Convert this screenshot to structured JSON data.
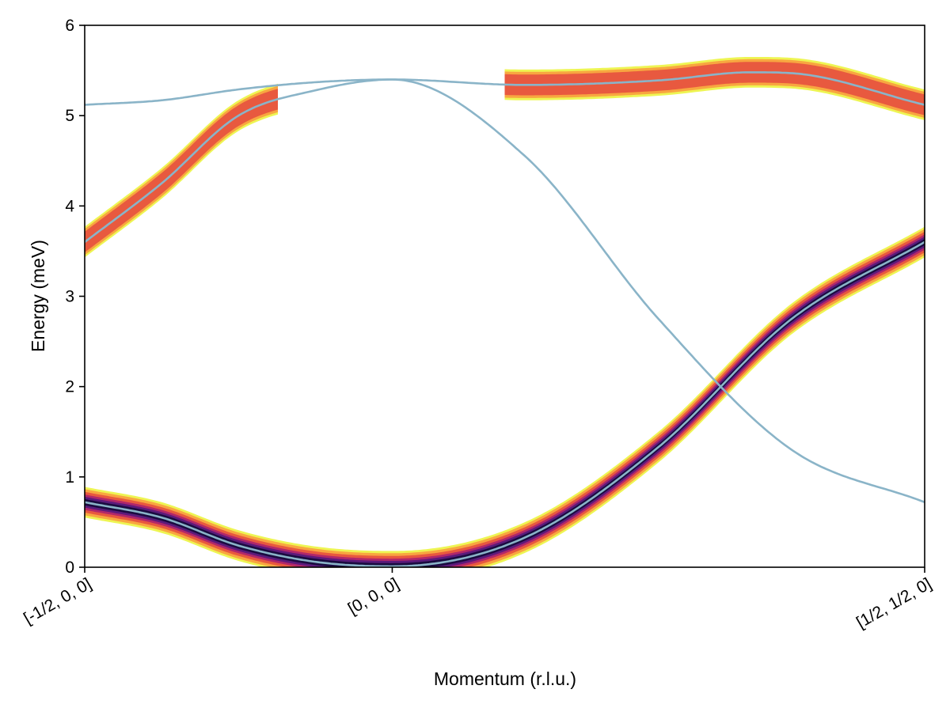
{
  "chart_data": {
    "type": "line",
    "xlabel": "Momentum (r.l.u.)",
    "ylabel": "Energy (meV)",
    "ylim": [
      0,
      6
    ],
    "xlim": [
      0,
      2.4142
    ],
    "grid": false,
    "y_ticks": [
      0,
      1,
      2,
      3,
      4,
      5,
      6
    ],
    "x_ticks": [
      {
        "value": 0,
        "label": "[-1/2, 0, 0]"
      },
      {
        "value": 0.8839,
        "label": "[0, 0, 0]"
      },
      {
        "value": 2.4142,
        "label": "[1/2, 1/2, 0]"
      }
    ],
    "intensity_colormap": [
      "#eef553",
      "#f8a640",
      "#e8593f",
      "#b1276a",
      "#5c1a7b",
      "#1a0c40"
    ],
    "series": [
      {
        "color": "#8ab4c8",
        "x": [
          0,
          0.221,
          0.442,
          0.663,
          0.884,
          1.266,
          1.649,
          2.032,
          2.414
        ],
        "y": [
          0.72,
          0.55,
          0.24,
          0.06,
          0.01,
          0.33,
          1.33,
          2.75,
          3.6
        ]
      },
      {
        "color": "#8ab4c8",
        "x": [
          0,
          0.221,
          0.442,
          0.663,
          0.884,
          1.266,
          1.649,
          2.032,
          2.414
        ],
        "y": [
          3.6,
          4.25,
          5.0,
          5.28,
          5.4,
          4.55,
          2.75,
          1.3,
          0.72
        ]
      },
      {
        "color": "#8ab4c8",
        "x": [
          0,
          0.221,
          0.442,
          0.663,
          0.884,
          1.266,
          1.649,
          1.914,
          2.032,
          2.414
        ],
        "y": [
          5.12,
          5.17,
          5.29,
          5.37,
          5.4,
          5.34,
          5.39,
          5.48,
          5.47,
          5.12
        ]
      }
    ]
  }
}
